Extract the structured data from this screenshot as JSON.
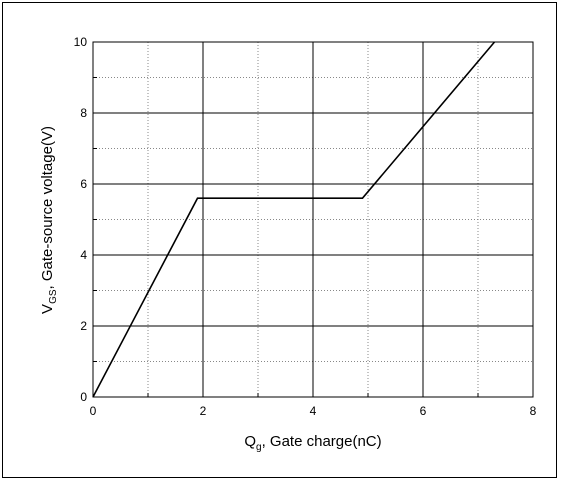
{
  "chart_data": {
    "type": "line",
    "title": "",
    "xlabel": {
      "main": "Q",
      "sub": "g",
      "rest": ", Gate charge(nC)"
    },
    "ylabel": {
      "main": "V",
      "sub": "GS",
      "rest": ", Gate-source voltage(V)"
    },
    "xlim": [
      0,
      8
    ],
    "ylim": [
      0,
      10
    ],
    "x_major_ticks": [
      0,
      2,
      4,
      6,
      8
    ],
    "y_major_ticks": [
      0,
      2,
      4,
      6,
      8,
      10
    ],
    "x_tick_labels": [
      "0",
      "2",
      "4",
      "6",
      "8"
    ],
    "y_tick_labels": [
      "0",
      "2",
      "4",
      "6",
      "8",
      "10"
    ],
    "grid": {
      "major": true,
      "minor": "dotted"
    },
    "series": [
      {
        "x": [
          0,
          1.9,
          4.9,
          7.3
        ],
        "y": [
          0,
          5.6,
          5.6,
          10
        ],
        "color": "#000000"
      }
    ]
  }
}
